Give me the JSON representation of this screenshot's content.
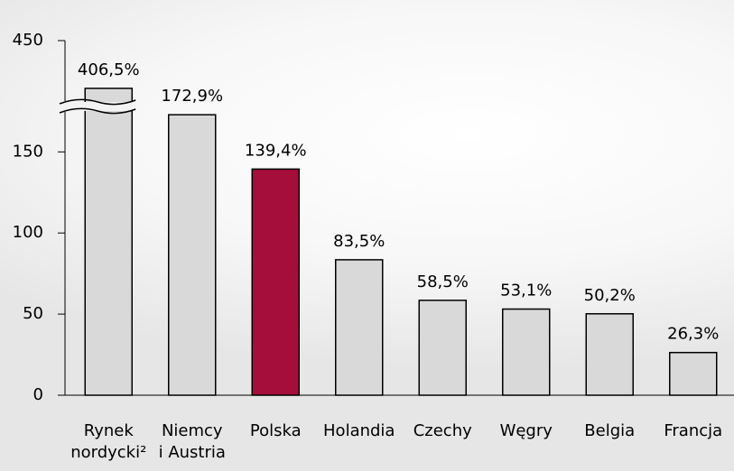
{
  "chart_data": {
    "type": "bar",
    "categories": [
      "Rynek\nnordycki²",
      "Niemcy\ni Austria",
      "Polska",
      "Holandia",
      "Czechy",
      "Węgry",
      "Belgia",
      "Francja"
    ],
    "values": [
      406.5,
      172.9,
      139.4,
      83.5,
      58.5,
      53.1,
      50.2,
      26.3
    ],
    "value_labels": [
      "406,5%",
      "172,9%",
      "139,4%",
      "83,5%",
      "58,5%",
      "53,1%",
      "50,2%",
      "26,3%"
    ],
    "colors": [
      "#d9d9d9",
      "#d9d9d9",
      "#a50d3a",
      "#d9d9d9",
      "#d9d9d9",
      "#d9d9d9",
      "#d9d9d9",
      "#d9d9d9"
    ],
    "ylim": [
      0,
      450
    ],
    "yticks": [
      0,
      50,
      100,
      150,
      450
    ],
    "axis_break": [
      178,
      390
    ],
    "grid": false
  }
}
